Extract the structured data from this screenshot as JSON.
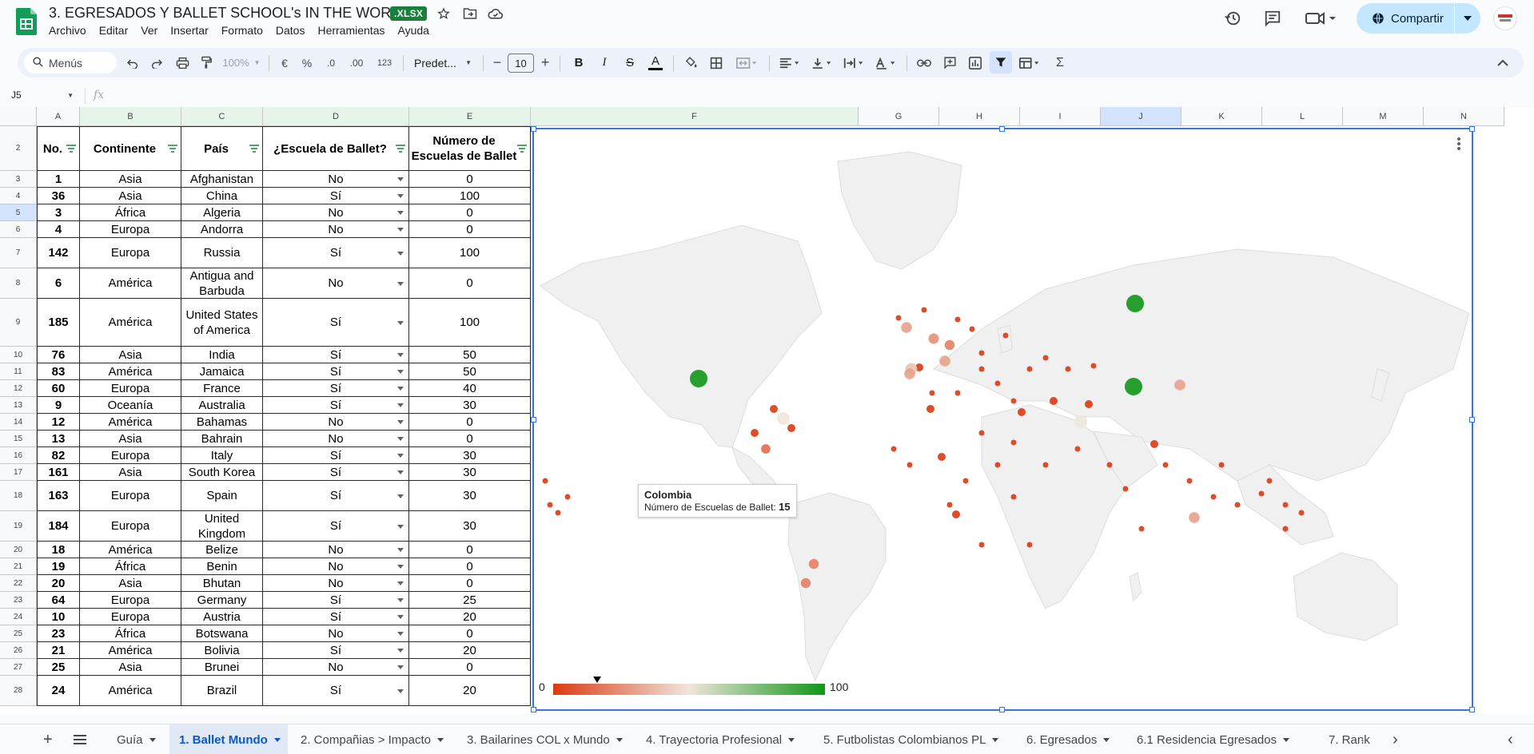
{
  "app": {
    "title": "3. EGRESADOS Y BALLET SCHOOL's IN THE WORLD",
    "badge": ".XLSX",
    "menus": [
      "Archivo",
      "Editar",
      "Ver",
      "Insertar",
      "Formato",
      "Datos",
      "Herramientas",
      "Ayuda"
    ],
    "share_label": "Compartir"
  },
  "toolbar": {
    "search_label": "Menús",
    "zoom": "100%",
    "currency": "€",
    "percent": "%",
    "dec_less": ".0",
    "dec_more": ".00",
    "number_format": "123",
    "font": "Predet...",
    "font_size": "10",
    "bold": "B",
    "italic": "I",
    "strike": "S",
    "text_color": "A",
    "sigma": "Σ"
  },
  "formula_bar": {
    "name_box": "J5",
    "fx": "fx"
  },
  "columns": [
    "A",
    "B",
    "C",
    "D",
    "E",
    "F",
    "G",
    "H",
    "I",
    "J",
    "K",
    "L",
    "M",
    "N"
  ],
  "headers": {
    "no": "No.",
    "continente": "Continente",
    "pais": "País",
    "escuela": "¿Escuela de Ballet?",
    "numero": "Número de Escuelas de Ballet"
  },
  "rows": [
    {
      "r": "3",
      "no": "1",
      "cont": "Asia",
      "pais": "Afghanistan",
      "esc": "No",
      "num": "0"
    },
    {
      "r": "4",
      "no": "36",
      "cont": "Asia",
      "pais": "China",
      "esc": "Sí",
      "num": "100"
    },
    {
      "r": "5",
      "no": "3",
      "cont": "África",
      "pais": "Algeria",
      "esc": "No",
      "num": "0"
    },
    {
      "r": "6",
      "no": "4",
      "cont": "Europa",
      "pais": "Andorra",
      "esc": "No",
      "num": "0"
    },
    {
      "r": "7",
      "no": "142",
      "cont": "Europa",
      "pais": "Russia",
      "esc": "Sí",
      "num": "100"
    },
    {
      "r": "8",
      "no": "6",
      "cont": "América",
      "pais": "Antigua and Barbuda",
      "esc": "No",
      "num": "0"
    },
    {
      "r": "9",
      "no": "185",
      "cont": "América",
      "pais": "United States of America",
      "esc": "Sí",
      "num": "100"
    },
    {
      "r": "10",
      "no": "76",
      "cont": "Asia",
      "pais": "India",
      "esc": "Sí",
      "num": "50"
    },
    {
      "r": "11",
      "no": "83",
      "cont": "América",
      "pais": "Jamaica",
      "esc": "Sí",
      "num": "50"
    },
    {
      "r": "12",
      "no": "60",
      "cont": "Europa",
      "pais": "France",
      "esc": "Sí",
      "num": "40"
    },
    {
      "r": "13",
      "no": "9",
      "cont": "Oceanía",
      "pais": "Australia",
      "esc": "Sí",
      "num": "30"
    },
    {
      "r": "14",
      "no": "12",
      "cont": "América",
      "pais": "Bahamas",
      "esc": "No",
      "num": "0"
    },
    {
      "r": "15",
      "no": "13",
      "cont": "Asia",
      "pais": "Bahrain",
      "esc": "No",
      "num": "0"
    },
    {
      "r": "16",
      "no": "82",
      "cont": "Europa",
      "pais": "Italy",
      "esc": "Sí",
      "num": "30"
    },
    {
      "r": "17",
      "no": "161",
      "cont": "Asia",
      "pais": "South Korea",
      "esc": "Sí",
      "num": "30"
    },
    {
      "r": "18",
      "no": "163",
      "cont": "Europa",
      "pais": "Spain",
      "esc": "Sí",
      "num": "30"
    },
    {
      "r": "19",
      "no": "184",
      "cont": "Europa",
      "pais": "United Kingdom",
      "esc": "Sí",
      "num": "30"
    },
    {
      "r": "20",
      "no": "18",
      "cont": "América",
      "pais": "Belize",
      "esc": "No",
      "num": "0"
    },
    {
      "r": "21",
      "no": "19",
      "cont": "África",
      "pais": "Benin",
      "esc": "No",
      "num": "0"
    },
    {
      "r": "22",
      "no": "20",
      "cont": "Asia",
      "pais": "Bhutan",
      "esc": "No",
      "num": "0"
    },
    {
      "r": "23",
      "no": "64",
      "cont": "Europa",
      "pais": "Germany",
      "esc": "Sí",
      "num": "25"
    },
    {
      "r": "24",
      "no": "10",
      "cont": "Europa",
      "pais": "Austria",
      "esc": "Sí",
      "num": "20"
    },
    {
      "r": "25",
      "no": "23",
      "cont": "África",
      "pais": "Botswana",
      "esc": "No",
      "num": "0"
    },
    {
      "r": "26",
      "no": "21",
      "cont": "América",
      "pais": "Bolivia",
      "esc": "Sí",
      "num": "20"
    },
    {
      "r": "27",
      "no": "25",
      "cont": "Asia",
      "pais": "Brunei",
      "esc": "No",
      "num": "0"
    },
    {
      "r": "28",
      "no": "24",
      "cont": "América",
      "pais": "Brazil",
      "esc": "Sí",
      "num": "20"
    }
  ],
  "chart": {
    "tooltip_country": "Colombia",
    "tooltip_label": "Número de Escuelas de Ballet:",
    "tooltip_value": "15",
    "legend_min": "0",
    "legend_max": "100",
    "colors": {
      "low": "#dc3912",
      "mid": "#efe6dc",
      "high": "#109618"
    }
  },
  "chart_data": {
    "type": "geo",
    "metric": "Número de Escuelas de Ballet",
    "range": [
      0,
      100
    ],
    "legend_position": "bottom-left",
    "points": [
      {
        "country": "Afghanistan",
        "value": 0
      },
      {
        "country": "China",
        "value": 100
      },
      {
        "country": "Algeria",
        "value": 0
      },
      {
        "country": "Andorra",
        "value": 0
      },
      {
        "country": "Russia",
        "value": 100
      },
      {
        "country": "Antigua and Barbuda",
        "value": 0
      },
      {
        "country": "United States of America",
        "value": 100
      },
      {
        "country": "India",
        "value": 50
      },
      {
        "country": "Jamaica",
        "value": 50
      },
      {
        "country": "France",
        "value": 40
      },
      {
        "country": "Australia",
        "value": 30
      },
      {
        "country": "Bahamas",
        "value": 0
      },
      {
        "country": "Bahrain",
        "value": 0
      },
      {
        "country": "Italy",
        "value": 30
      },
      {
        "country": "South Korea",
        "value": 30
      },
      {
        "country": "Spain",
        "value": 30
      },
      {
        "country": "United Kingdom",
        "value": 30
      },
      {
        "country": "Belize",
        "value": 0
      },
      {
        "country": "Benin",
        "value": 0
      },
      {
        "country": "Bhutan",
        "value": 0
      },
      {
        "country": "Germany",
        "value": 25
      },
      {
        "country": "Austria",
        "value": 20
      },
      {
        "country": "Botswana",
        "value": 0
      },
      {
        "country": "Bolivia",
        "value": 20
      },
      {
        "country": "Brunei",
        "value": 0
      },
      {
        "country": "Brazil",
        "value": 20
      },
      {
        "country": "Colombia",
        "value": 15
      }
    ]
  },
  "sheet_tabs": [
    {
      "label": "Guía"
    },
    {
      "label": "1. Ballet Mundo",
      "active": true
    },
    {
      "label": "2. Compañias > Impacto"
    },
    {
      "label": "3. Bailarines COL x Mundo"
    },
    {
      "label": "4. Trayectoria Profesional"
    },
    {
      "label": "5. Futbolistas Colombianos PL"
    },
    {
      "label": "6. Egresados"
    },
    {
      "label": "6.1 Residencia Egresados"
    },
    {
      "label": "7. Rank"
    }
  ],
  "icons": [
    "sheets-logo",
    "star-icon",
    "folder-move-icon",
    "cloud-status-icon",
    "history-icon",
    "comment-icon",
    "meet-icon",
    "globe-icon",
    "search-icon",
    "undo-icon",
    "redo-icon",
    "print-icon",
    "paint-format-icon",
    "filter-icon",
    "add-sheet-icon",
    "all-sheets-icon"
  ]
}
